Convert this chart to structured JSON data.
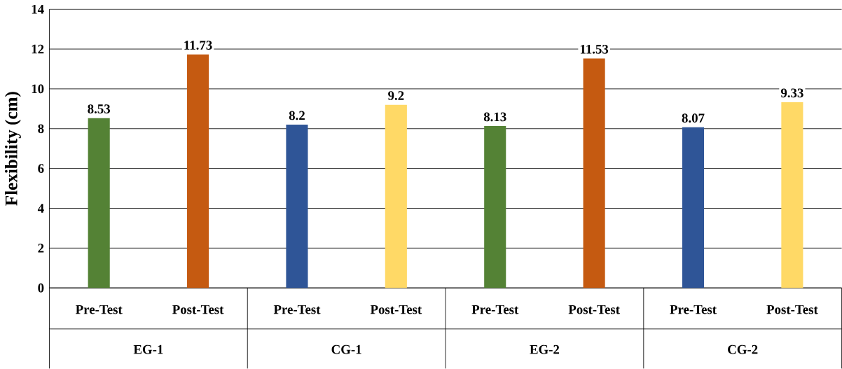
{
  "chart_data": {
    "type": "bar",
    "ylabel": "Flexibility (cm)",
    "categories": [
      "Pre-Test",
      "Post-Test",
      "Pre-Test",
      "Post-Test",
      "Pre-Test",
      "Post-Test",
      "Pre-Test",
      "Post-Test"
    ],
    "values": [
      8.53,
      11.73,
      8.2,
      9.2,
      8.13,
      11.53,
      8.07,
      9.33
    ],
    "colors": [
      "#548235",
      "#c55a11",
      "#2f5597",
      "#ffd966",
      "#548235",
      "#c55a11",
      "#2f5597",
      "#ffd966"
    ],
    "ylim": [
      0,
      14
    ],
    "yticks": [
      0,
      2,
      4,
      6,
      8,
      10,
      12,
      14
    ],
    "grid": "y",
    "data_labels": true,
    "annotations": [
      "EG-1",
      "CG-1",
      "EG-2",
      "CG-2"
    ]
  }
}
